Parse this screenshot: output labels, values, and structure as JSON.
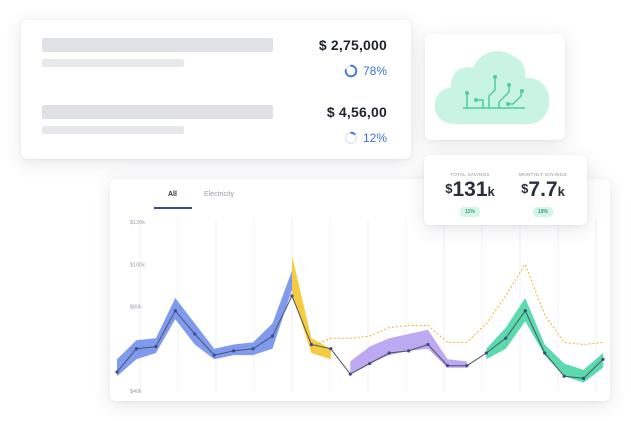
{
  "stats": {
    "rows": [
      {
        "amount": "$ 2,75,000",
        "percent": "78%",
        "progress": 0.78
      },
      {
        "amount": "$ 4,56,00",
        "percent": "12%",
        "progress": 0.12
      }
    ],
    "accent": "#3a74e0"
  },
  "cloud": {
    "icon": "cloud-circuit-icon",
    "fill": "#c9f3e3",
    "trace_color": "#4fcf9a"
  },
  "savings": {
    "total": {
      "label": "TOTAL SAVINGS",
      "currency": "$",
      "value": "131",
      "suffix": "k",
      "change": "11%"
    },
    "monthly": {
      "label": "MONTHLY SAVINGS",
      "currency": "$",
      "value": "7.7",
      "suffix": "k",
      "change": "19%"
    }
  },
  "chart": {
    "tabs": {
      "all": "All",
      "electricity": "Electricity"
    }
  },
  "chart_data": {
    "type": "line",
    "yticks": [
      "$120k",
      "$100k",
      "$80k",
      "$60k",
      "$40k"
    ],
    "ylim": [
      40,
      120
    ],
    "grid": "vertical",
    "x": [
      0,
      1,
      2,
      3,
      4,
      5,
      6,
      7,
      8,
      9,
      10,
      11,
      12,
      13,
      14,
      15,
      16,
      17,
      18,
      19,
      20,
      21,
      22,
      23,
      24,
      25
    ],
    "series": [
      {
        "role": "actual",
        "color": "#4a5567",
        "values": [
          49,
          60,
          61,
          78,
          67,
          57,
          59,
          60,
          66,
          85,
          62,
          60,
          48,
          53,
          58,
          59,
          62,
          52,
          52,
          58,
          65,
          78,
          58,
          47,
          46,
          55
        ]
      },
      {
        "role": "forecast",
        "color": "#f0b41e",
        "values": [
          null,
          null,
          null,
          null,
          null,
          null,
          null,
          null,
          null,
          null,
          61,
          65,
          65,
          66,
          70,
          71,
          71,
          63,
          63,
          72,
          85,
          100,
          76,
          63,
          62,
          63
        ]
      },
      {
        "role": "range-blue",
        "color": "#6a88ec",
        "lower": [
          47,
          55,
          58,
          74,
          62,
          55,
          57,
          57,
          60,
          88,
          null,
          null,
          null,
          null,
          null,
          null,
          null,
          null,
          null,
          null,
          null,
          null,
          null,
          null,
          null,
          null
        ],
        "upper": [
          55,
          64,
          65,
          84,
          72,
          60,
          62,
          63,
          72,
          97,
          null,
          null,
          null,
          null,
          null,
          null,
          null,
          null,
          null,
          null,
          null,
          null,
          null,
          null,
          null,
          null
        ]
      },
      {
        "role": "range-yellow",
        "color": "#f3c21d",
        "lower": [
          null,
          null,
          null,
          null,
          null,
          null,
          null,
          null,
          null,
          86,
          58,
          55,
          null,
          null,
          null,
          null,
          null,
          null,
          null,
          null,
          null,
          null,
          null,
          null,
          null,
          null
        ],
        "upper": [
          null,
          null,
          null,
          null,
          null,
          null,
          null,
          null,
          null,
          104,
          65,
          60,
          null,
          null,
          null,
          null,
          null,
          null,
          null,
          null,
          null,
          null,
          null,
          null,
          null,
          null
        ]
      },
      {
        "role": "range-purple",
        "color": "#b29af0",
        "lower": [
          null,
          null,
          null,
          null,
          null,
          null,
          null,
          null,
          null,
          null,
          null,
          null,
          48,
          53,
          57,
          59,
          60,
          51,
          51,
          null,
          null,
          null,
          null,
          null,
          null,
          null
        ],
        "upper": [
          null,
          null,
          null,
          null,
          null,
          null,
          null,
          null,
          null,
          null,
          null,
          null,
          54,
          61,
          65,
          67,
          69,
          55,
          54,
          null,
          null,
          null,
          null,
          null,
          null,
          null
        ]
      },
      {
        "role": "range-green",
        "color": "#3fd49c",
        "lower": [
          null,
          null,
          null,
          null,
          null,
          null,
          null,
          null,
          null,
          null,
          null,
          null,
          null,
          null,
          null,
          null,
          null,
          null,
          null,
          55,
          60,
          73,
          57,
          47,
          44,
          51
        ],
        "upper": [
          null,
          null,
          null,
          null,
          null,
          null,
          null,
          null,
          null,
          null,
          null,
          null,
          null,
          null,
          null,
          null,
          null,
          null,
          null,
          60,
          70,
          84,
          62,
          53,
          50,
          58
        ]
      }
    ]
  }
}
